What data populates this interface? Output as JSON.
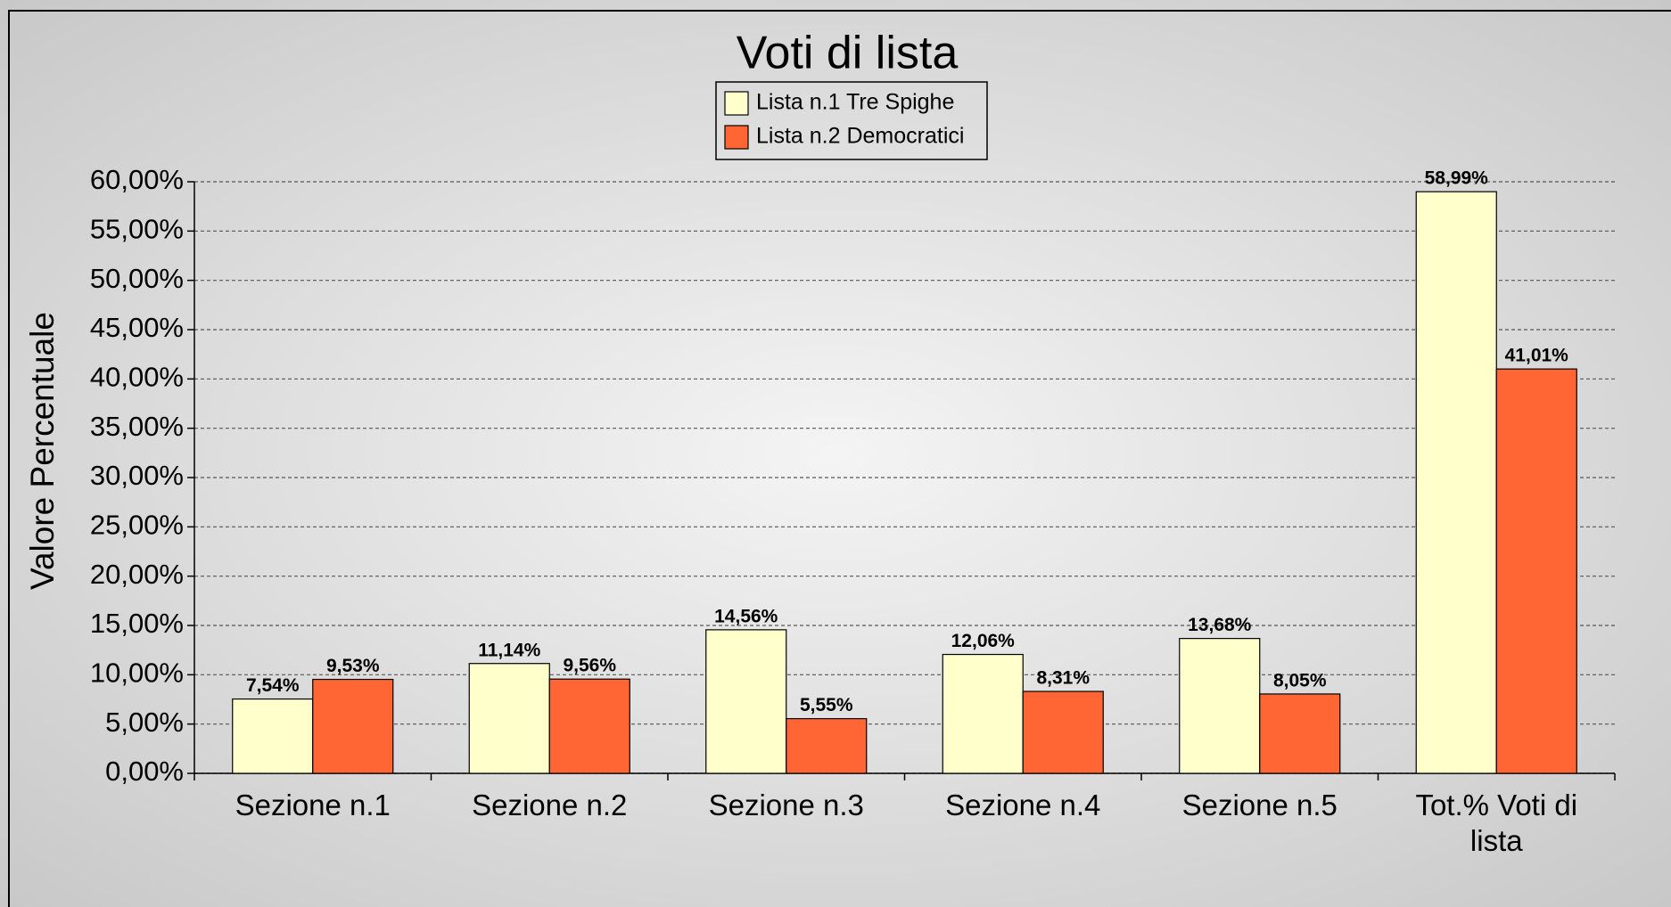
{
  "chart_data": {
    "type": "bar",
    "title": "Voti di lista",
    "y_label": "Valore Percentuale",
    "categories": [
      "Sezione n.1",
      "Sezione n.2",
      "Sezione n.3",
      "Sezione n.4",
      "Sezione n.5",
      "Tot.% Voti di lista"
    ],
    "series": [
      {
        "name": "Lista n.1 Tre Spighe",
        "color": "#ffffcc",
        "values": [
          7.54,
          11.14,
          14.56,
          12.06,
          13.68,
          58.99
        ],
        "value_labels": [
          "7,54%",
          "11,14%",
          "14,56%",
          "12,06%",
          "13,68%",
          "58,99%"
        ]
      },
      {
        "name": "Lista n.2 Democratici",
        "color": "#ff6633",
        "values": [
          9.53,
          9.56,
          5.55,
          8.31,
          8.05,
          41.01
        ],
        "value_labels": [
          "9,53%",
          "9,56%",
          "5,55%",
          "8,31%",
          "8,05%",
          "41,01%"
        ]
      }
    ],
    "ylim": [
      0,
      60
    ],
    "yticks": [
      {
        "value": 0,
        "label": "0,00%"
      },
      {
        "value": 5,
        "label": "5,00%"
      },
      {
        "value": 10,
        "label": "10,00%"
      },
      {
        "value": 15,
        "label": "15,00%"
      },
      {
        "value": 20,
        "label": "20,00%"
      },
      {
        "value": 25,
        "label": "25,00%"
      },
      {
        "value": 30,
        "label": "30,00%"
      },
      {
        "value": 35,
        "label": "35,00%"
      },
      {
        "value": 40,
        "label": "40,00%"
      },
      {
        "value": 45,
        "label": "45,00%"
      },
      {
        "value": 50,
        "label": "50,00%"
      },
      {
        "value": 55,
        "label": "55,00%"
      },
      {
        "value": 60,
        "label": "60,00%"
      }
    ],
    "grid": true,
    "legend": "top"
  }
}
